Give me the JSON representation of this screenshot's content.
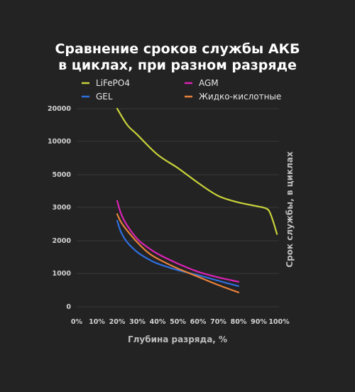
{
  "chart_data": {
    "type": "line",
    "title_lines": [
      "Сравнение сроков службы АКБ",
      "в циклах, при разном разряде"
    ],
    "xlabel": "Глубина разряда, %",
    "ylabel": "Срок службы, в циклах",
    "x_ticks": [
      "0%",
      "10%",
      "20%",
      "30%",
      "40%",
      "50%",
      "60%",
      "70%",
      "80%",
      "90%",
      "100%"
    ],
    "y_ticks": [
      "0",
      "1000",
      "2000",
      "3000",
      "5000",
      "10000",
      "20000"
    ],
    "y_tick_values": [
      0,
      1000,
      2000,
      3000,
      5000,
      10000,
      20000
    ],
    "xlim": [
      0,
      100
    ],
    "grid": true,
    "legend_position": "top",
    "series": [
      {
        "name": "LiFePO4",
        "color": "#c8d23a",
        "x": [
          20,
          25,
          30,
          40,
          50,
          60,
          70,
          80,
          90,
          93,
          95,
          97,
          99
        ],
        "y": [
          20000,
          15000,
          12000,
          8000,
          6000,
          4500,
          3700,
          3300,
          3050,
          2980,
          2900,
          2600,
          2200
        ]
      },
      {
        "name": "AGM",
        "color": "#d923b4",
        "x": [
          20,
          22,
          25,
          30,
          35,
          40,
          50,
          60,
          70,
          80
        ],
        "y": [
          3400,
          2800,
          2450,
          2050,
          1800,
          1600,
          1300,
          1050,
          880,
          750
        ]
      },
      {
        "name": "GEL",
        "color": "#2f6fe0",
        "x": [
          20,
          22,
          25,
          30,
          35,
          40,
          50,
          60,
          70,
          80
        ],
        "y": [
          2600,
          2250,
          1950,
          1650,
          1450,
          1300,
          1100,
          950,
          780,
          620
        ]
      },
      {
        "name": "Жидко-кислотные",
        "color": "#e8823a",
        "x": [
          20,
          22,
          25,
          30,
          35,
          40,
          50,
          60,
          70,
          80
        ],
        "y": [
          2800,
          2550,
          2300,
          1950,
          1650,
          1450,
          1150,
          900,
          650,
          430
        ]
      }
    ]
  }
}
